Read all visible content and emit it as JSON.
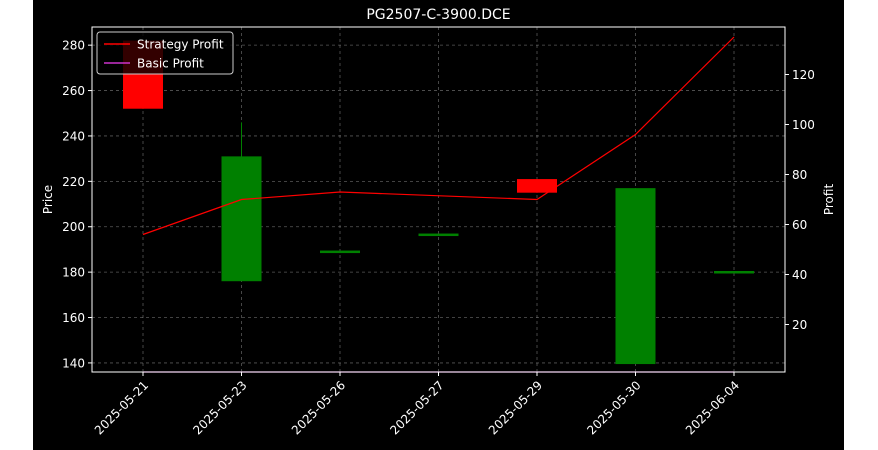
{
  "chart_data": {
    "type": "candlestick",
    "title": "PG2507-C-3900.DCE",
    "ylabel": "Price",
    "ylabel_right": "Profit",
    "categories": [
      "2025-05-21",
      "2025-05-23",
      "2025-05-26",
      "2025-05-27",
      "2025-05-29",
      "2025-05-30",
      "2025-06-04"
    ],
    "ylim": [
      136,
      288
    ],
    "ylim_right": [
      1,
      139
    ],
    "yticks": [
      140,
      160,
      180,
      200,
      220,
      240,
      260,
      280
    ],
    "yticks_right": [
      20,
      40,
      60,
      80,
      100,
      120
    ],
    "candles": [
      {
        "open": 282,
        "close": 252,
        "high": 282,
        "low": 252
      },
      {
        "open": 176,
        "close": 231,
        "high": 246,
        "low": 176
      },
      {
        "open": 189.5,
        "close": 189.5,
        "high": 189.5,
        "low": 189.5
      },
      {
        "open": 197,
        "close": 197,
        "high": 197,
        "low": 197
      },
      {
        "open": 221,
        "close": 215,
        "high": 221,
        "low": 215
      },
      {
        "open": 139.5,
        "close": 217,
        "high": 217,
        "low": 139.5
      },
      {
        "open": 180.5,
        "close": 180.5,
        "high": 180.5,
        "low": 180.5
      }
    ],
    "series": [
      {
        "name": "Strategy Profit",
        "axis": "right",
        "color": "#ff0000",
        "values": [
          56,
          70,
          73,
          null,
          70,
          96,
          135
        ]
      },
      {
        "name": "Basic Profit",
        "axis": "right",
        "color": "#cc33cc",
        "values": [
          1,
          1,
          1,
          1,
          1,
          1,
          1
        ]
      }
    ],
    "up_color": "#008000",
    "down_color": "#ff0000",
    "grid": true,
    "legend_position": "top-left"
  }
}
